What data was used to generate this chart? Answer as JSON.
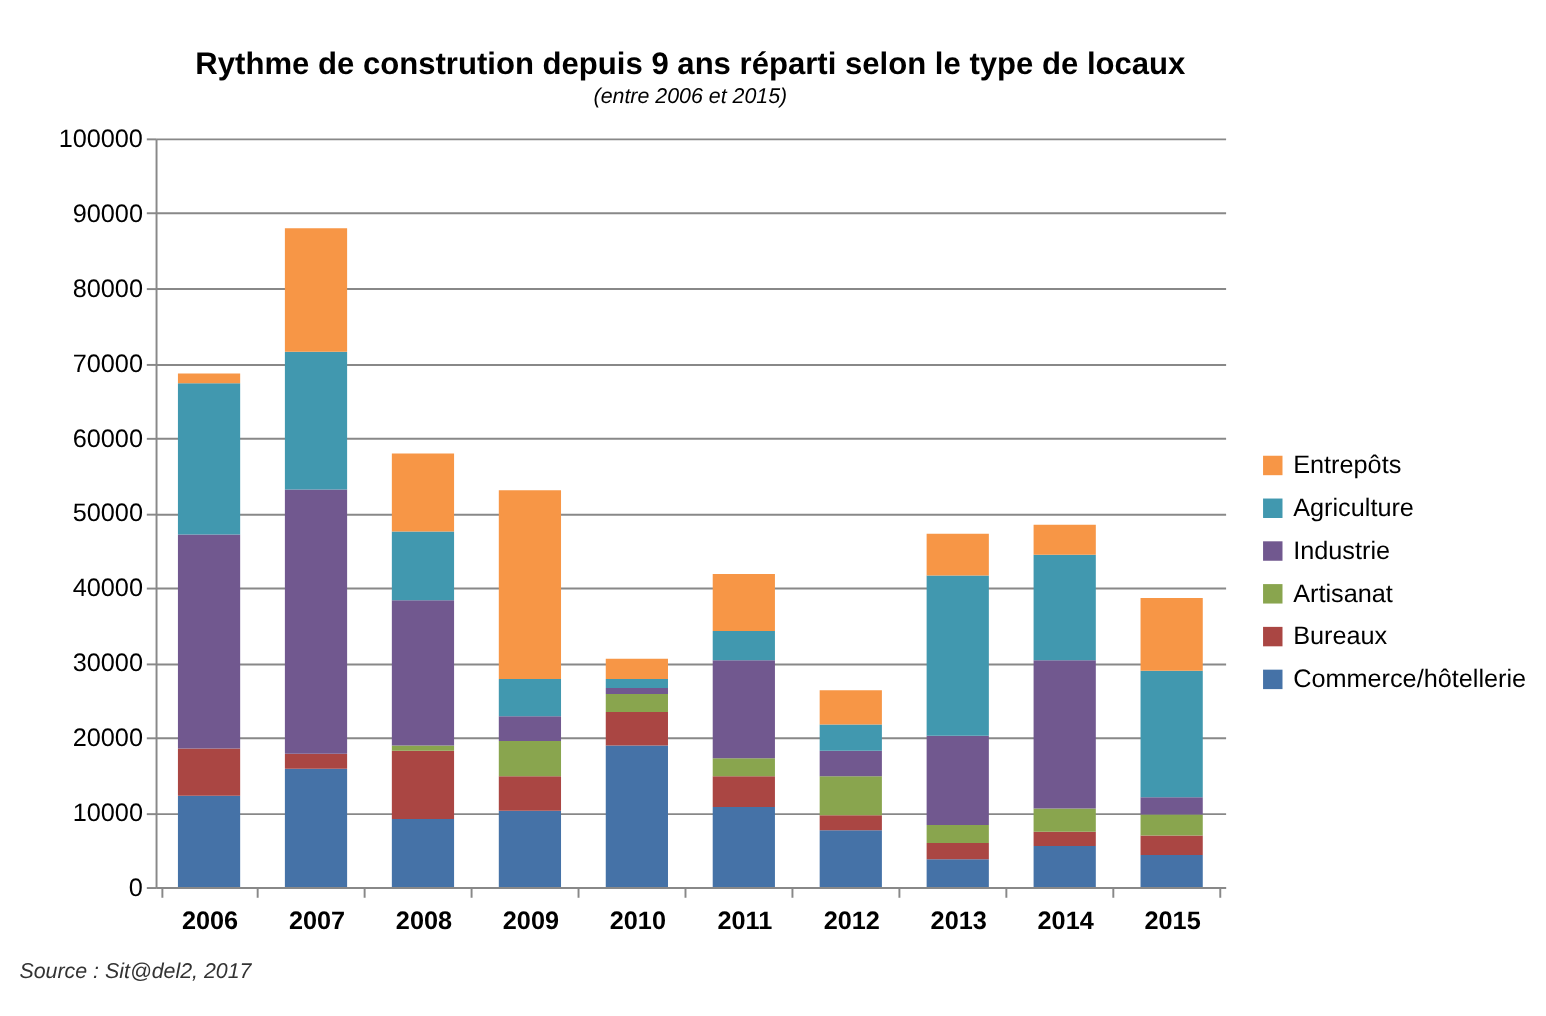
{
  "chart_data": {
    "type": "bar",
    "stacked": true,
    "title": "Rythme de constrution depuis 9 ans réparti selon le type de locaux",
    "subtitle": "(entre 2006 et 2015)",
    "categories": [
      "2006",
      "2007",
      "2008",
      "2009",
      "2010",
      "2011",
      "2012",
      "2013",
      "2014",
      "2015"
    ],
    "series": [
      {
        "name": "Commerce/hôtellerie",
        "color": "#4572a7",
        "values": [
          12200,
          15800,
          9100,
          10200,
          18900,
          10700,
          7600,
          3700,
          5500,
          4300
        ]
      },
      {
        "name": "Bureaux",
        "color": "#aa4643",
        "values": [
          6300,
          2000,
          9100,
          4600,
          4500,
          4100,
          2000,
          2200,
          1900,
          2600
        ]
      },
      {
        "name": "Artisanat",
        "color": "#89a54e",
        "values": [
          0,
          0,
          700,
          4700,
          2400,
          2400,
          5200,
          2400,
          3100,
          2800
        ]
      },
      {
        "name": "Industrie",
        "color": "#71588f",
        "values": [
          28600,
          35300,
          19400,
          3300,
          800,
          13100,
          3400,
          11900,
          19800,
          2300
        ]
      },
      {
        "name": "Agriculture",
        "color": "#4198af",
        "values": [
          20200,
          18400,
          9200,
          5000,
          1200,
          3900,
          3500,
          21400,
          14100,
          16900
        ]
      },
      {
        "name": "Entrepôts",
        "color": "#f79646",
        "values": [
          1300,
          16500,
          10400,
          25200,
          2700,
          7600,
          4600,
          5600,
          4000,
          9700
        ]
      }
    ],
    "ylim": [
      0,
      100000
    ],
    "yticks": [
      0,
      10000,
      20000,
      30000,
      40000,
      50000,
      60000,
      70000,
      80000,
      90000,
      100000
    ],
    "grid": "y",
    "legend": "right",
    "annotations": [
      "Source : Sit@del2, 2017"
    ]
  }
}
